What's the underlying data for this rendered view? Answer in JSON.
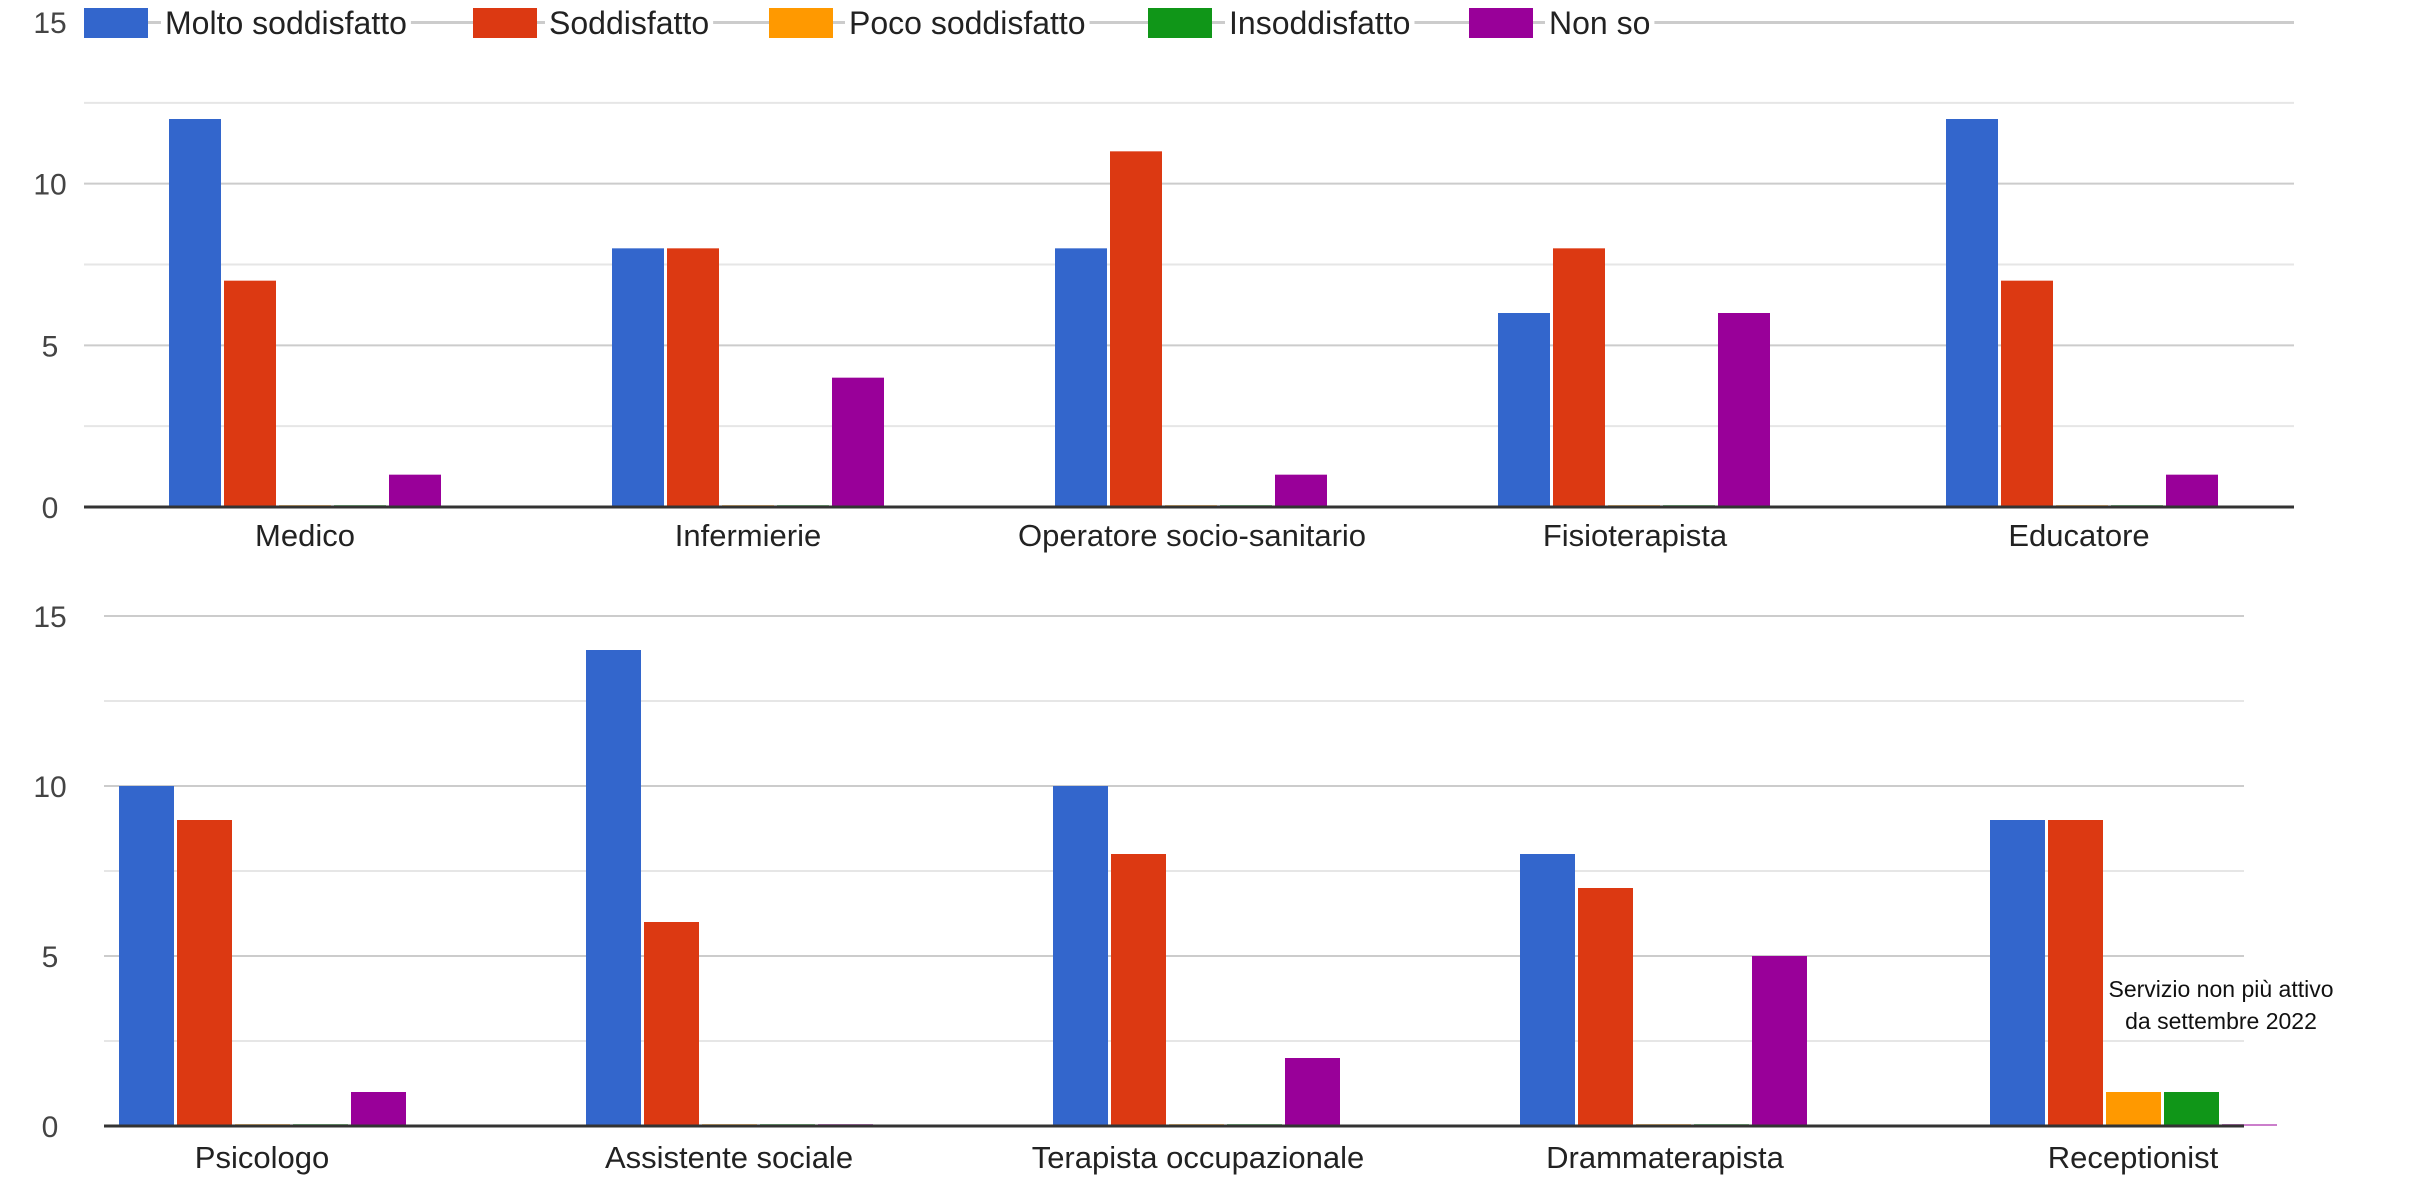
{
  "chart_data": [
    {
      "type": "bar",
      "title": "",
      "xlabel": "",
      "ylabel": "",
      "ylim": [
        0,
        15
      ],
      "yticks": [
        "0",
        "5",
        "10",
        "15"
      ],
      "grid": true,
      "legend": "top-left",
      "categories": [
        "Medico",
        "Infermierie",
        "Operatore socio-sanitario",
        "Fisioterapista",
        "Educatore"
      ],
      "series": [
        {
          "name": "Molto soddisfatto",
          "color": "#3366cc",
          "values": [
            12,
            8,
            8,
            6,
            12
          ]
        },
        {
          "name": "Soddisfatto",
          "color": "#dc3912",
          "values": [
            7,
            8,
            11,
            8,
            7
          ]
        },
        {
          "name": "Poco soddisfatto",
          "color": "#ff9900",
          "values": [
            0,
            0,
            0,
            0,
            0
          ]
        },
        {
          "name": "Insoddisfatto",
          "color": "#109618",
          "values": [
            0,
            0,
            0,
            0,
            0
          ]
        },
        {
          "name": "Non so",
          "color": "#990099",
          "values": [
            1,
            4,
            1,
            6,
            1
          ]
        }
      ]
    },
    {
      "type": "bar",
      "title": "",
      "xlabel": "",
      "ylabel": "",
      "ylim": [
        0,
        15
      ],
      "yticks": [
        "0",
        "5",
        "10",
        "15"
      ],
      "grid": true,
      "legend": "none",
      "categories": [
        "Psicologo",
        "Assistente sociale",
        "Terapista occupazionale",
        "Drammaterapista",
        "Receptionist"
      ],
      "series": [
        {
          "name": "Molto soddisfatto",
          "color": "#3366cc",
          "values": [
            10,
            14,
            10,
            8,
            9
          ]
        },
        {
          "name": "Soddisfatto",
          "color": "#dc3912",
          "values": [
            9,
            6,
            8,
            7,
            9
          ]
        },
        {
          "name": "Poco soddisfatto",
          "color": "#ff9900",
          "values": [
            0,
            0,
            0,
            0,
            1
          ]
        },
        {
          "name": "Insoddisfatto",
          "color": "#109618",
          "values": [
            0,
            0,
            0,
            0,
            1
          ]
        },
        {
          "name": "Non so",
          "color": "#990099",
          "values": [
            1,
            0,
            2,
            5,
            0
          ]
        }
      ],
      "annotation": [
        "Servizio non più attivo",
        "da settembre 2022"
      ]
    }
  ]
}
